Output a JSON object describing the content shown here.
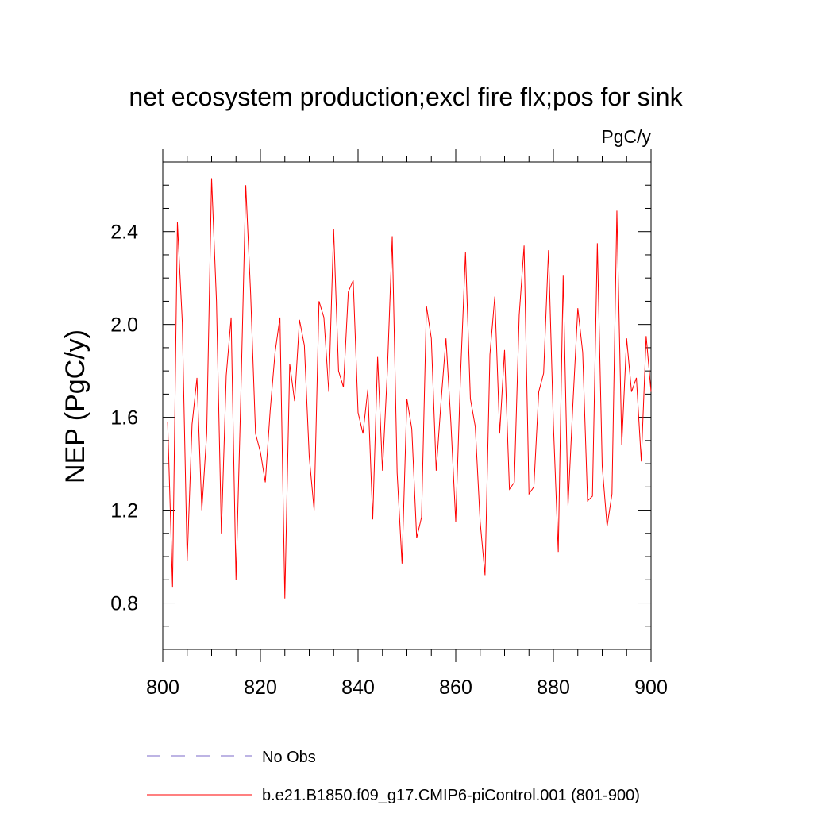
{
  "chart_data": {
    "type": "line",
    "title": "net ecosystem production;excl fire flx;pos for sink",
    "units": "PgC/y",
    "xlabel": "",
    "ylabel": "NEP  (PgC/y)",
    "xlim": [
      800,
      900
    ],
    "ylim": [
      0.6,
      2.7
    ],
    "x_ticks": [
      800,
      820,
      840,
      860,
      880,
      900
    ],
    "x_tick_labels": [
      "800",
      "820",
      "840",
      "860",
      "880",
      "900"
    ],
    "x_minor_step": 5,
    "y_ticks": [
      0.8,
      1.2,
      1.6,
      2.0,
      2.4
    ],
    "y_tick_labels": [
      "0.8",
      "1.2",
      "1.6",
      "2.0",
      "2.4"
    ],
    "y_minor_step": 0.1,
    "grid": false,
    "legend_position": "bottom-left",
    "series": [
      {
        "name": "b.e21.B1850.f09_g17.CMIP6-piControl.001 (801-900)",
        "color": "#ff0000",
        "style": "solid",
        "x": [
          801,
          802,
          803,
          804,
          805,
          806,
          807,
          808,
          809,
          810,
          811,
          812,
          813,
          814,
          815,
          816,
          817,
          818,
          819,
          820,
          821,
          822,
          823,
          824,
          825,
          826,
          827,
          828,
          829,
          830,
          831,
          832,
          833,
          834,
          835,
          836,
          837,
          838,
          839,
          840,
          841,
          842,
          843,
          844,
          845,
          846,
          847,
          848,
          849,
          850,
          851,
          852,
          853,
          854,
          855,
          856,
          857,
          858,
          859,
          860,
          861,
          862,
          863,
          864,
          865,
          866,
          867,
          868,
          869,
          870,
          871,
          872,
          873,
          874,
          875,
          876,
          877,
          878,
          879,
          880,
          881,
          882,
          883,
          884,
          885,
          886,
          887,
          888,
          889,
          890,
          891,
          892,
          893,
          894,
          895,
          896,
          897,
          898,
          899,
          900
        ],
        "values": [
          1.58,
          0.87,
          2.44,
          2.01,
          0.98,
          1.57,
          1.77,
          1.2,
          1.53,
          2.63,
          2.1,
          1.1,
          1.78,
          2.03,
          0.9,
          1.7,
          2.6,
          2.13,
          1.53,
          1.45,
          1.32,
          1.63,
          1.88,
          2.03,
          0.82,
          1.83,
          1.67,
          2.02,
          1.91,
          1.43,
          1.2,
          2.1,
          2.03,
          1.71,
          2.41,
          1.8,
          1.73,
          2.14,
          2.19,
          1.62,
          1.53,
          1.72,
          1.16,
          1.86,
          1.37,
          1.8,
          2.38,
          1.36,
          0.97,
          1.68,
          1.55,
          1.08,
          1.17,
          2.08,
          1.94,
          1.37,
          1.67,
          1.94,
          1.58,
          1.15,
          1.79,
          2.31,
          1.68,
          1.56,
          1.15,
          0.92,
          1.87,
          2.12,
          1.53,
          1.89,
          1.29,
          1.32,
          2.04,
          2.34,
          1.27,
          1.3,
          1.71,
          1.79,
          2.32,
          1.57,
          1.02,
          2.21,
          1.22,
          1.66,
          2.07,
          1.88,
          1.24,
          1.26,
          2.35,
          1.39,
          1.13,
          1.27,
          2.49,
          1.48,
          1.94,
          1.71,
          1.77,
          1.41,
          1.95,
          1.71
        ]
      },
      {
        "name": "No Obs",
        "color": "#7b68c8",
        "style": "dashed",
        "x": [],
        "values": []
      }
    ]
  }
}
